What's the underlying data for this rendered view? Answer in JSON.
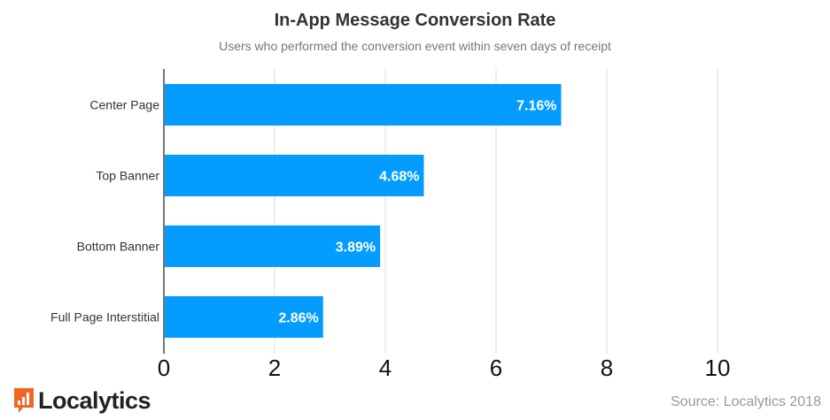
{
  "chart_data": {
    "type": "bar",
    "orientation": "horizontal",
    "title": "In-App Message Conversion Rate",
    "subtitle": "Users who performed the conversion event within seven days of receipt",
    "categories": [
      "Center Page",
      "Top Banner",
      "Bottom Banner",
      "Full Page Interstitial"
    ],
    "values": [
      7.16,
      4.68,
      3.89,
      2.86
    ],
    "data_labels": [
      "7.16%",
      "4.68%",
      "3.89%",
      "2.86%"
    ],
    "xlim": [
      0,
      10
    ],
    "xticks": [
      "0",
      "2",
      "4",
      "6",
      "8",
      "10"
    ],
    "grid": true,
    "bar_color": "#049cff",
    "xlabel": "",
    "ylabel": ""
  },
  "source": "Source: Localytics 2018",
  "logo": {
    "text": "Localytics",
    "color": "#f26522"
  }
}
